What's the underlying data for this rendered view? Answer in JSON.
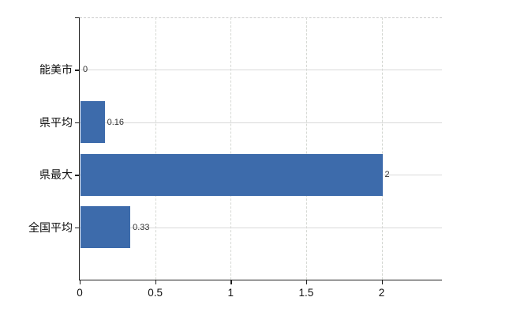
{
  "chart_data": {
    "type": "bar",
    "orientation": "horizontal",
    "title": "",
    "xlabel": "",
    "ylabel": "",
    "categories": [
      "能美市",
      "県平均",
      "県最大",
      "全国平均"
    ],
    "values": [
      0,
      0.16,
      2,
      0.33
    ],
    "value_labels": [
      "0",
      "0.16",
      "2",
      "0.33"
    ],
    "xlim": [
      0,
      2.4
    ],
    "xticks": [
      0,
      0.5,
      1,
      1.5,
      2
    ],
    "xtick_labels": [
      "0",
      "0.5",
      "1",
      "1.5",
      "2"
    ],
    "grid": true,
    "legend": false,
    "colors": {
      "bar": "#3d6bab",
      "axis": "#1f1f1f",
      "gridline_h": "#d9d9d9",
      "gridline_v": "#d5d8d3",
      "plot_top_border": "#cccccc",
      "category_label": "#111111",
      "tick_label": "#111111",
      "value_label": "#333333",
      "background": "#ffffff"
    }
  }
}
